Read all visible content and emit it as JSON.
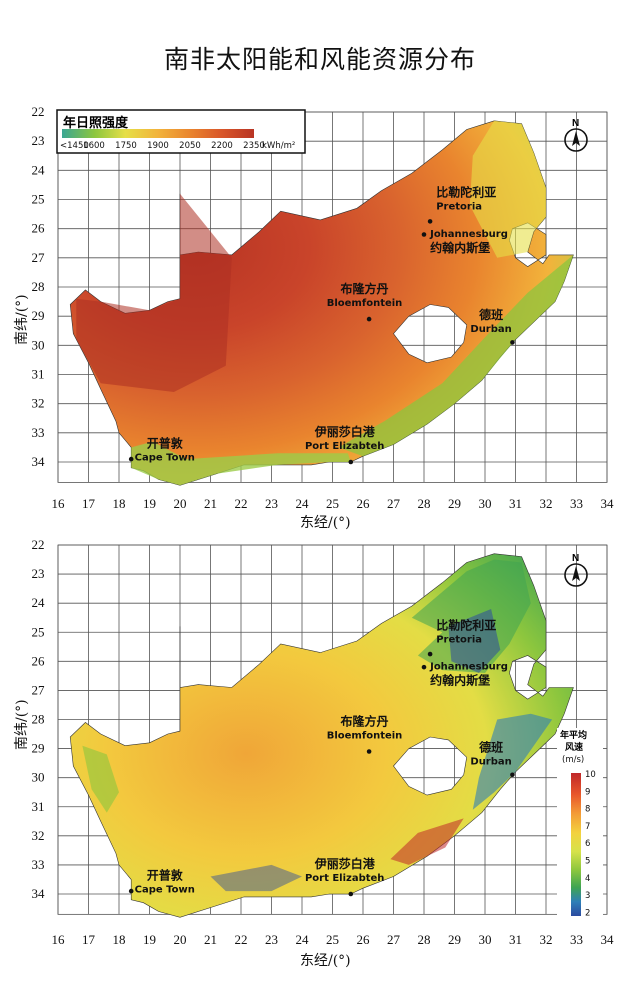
{
  "title": "南非太阳能和风能资源分布",
  "x_ticks": [
    "16",
    "17",
    "18",
    "19",
    "20",
    "21",
    "22",
    "23",
    "24",
    "25",
    "26",
    "27",
    "28",
    "29",
    "30",
    "31",
    "32",
    "33",
    "34"
  ],
  "y_ticks": [
    "22",
    "23",
    "24",
    "25",
    "26",
    "27",
    "28",
    "29",
    "30",
    "31",
    "32",
    "33",
    "34"
  ],
  "x_axis_label": "东经/(°)",
  "y_axis_label": "南纬/(°)",
  "north_label": "N",
  "solar_map": {
    "legend_title": "年日照强度",
    "legend_ticks": [
      "<1450",
      "1600",
      "1750",
      "1900",
      "2050",
      "2200",
      "2350"
    ],
    "legend_unit": "kWh/m²",
    "colors": [
      "#3aa693",
      "#8cc63e",
      "#e6df47",
      "#f2b33b",
      "#e9842e",
      "#d9572a",
      "#b83424"
    ]
  },
  "wind_map": {
    "legend_title": "年平均风速",
    "legend_unit": "(m/s)",
    "legend_ticks": [
      "10",
      "9",
      "8",
      "7",
      "6",
      "5",
      "4",
      "3",
      "2"
    ],
    "colors": [
      "#c0282a",
      "#e8572b",
      "#f39a36",
      "#f3d23f",
      "#d6e24a",
      "#8cc63e",
      "#3fa452",
      "#2e7fb8",
      "#2b4aa0"
    ]
  },
  "cities": [
    {
      "cn": "比勒陀利亚",
      "en": "Pretoria"
    },
    {
      "cn": "约翰内斯堡",
      "en": "Johannesburg"
    },
    {
      "cn": "布隆方丹",
      "en": "Bloemfontein"
    },
    {
      "cn": "德班",
      "en": "Durban"
    },
    {
      "cn": "开普敦",
      "en": "Cape Town"
    },
    {
      "cn": "伊丽莎白港",
      "en": "Port Elizabteh"
    }
  ]
}
